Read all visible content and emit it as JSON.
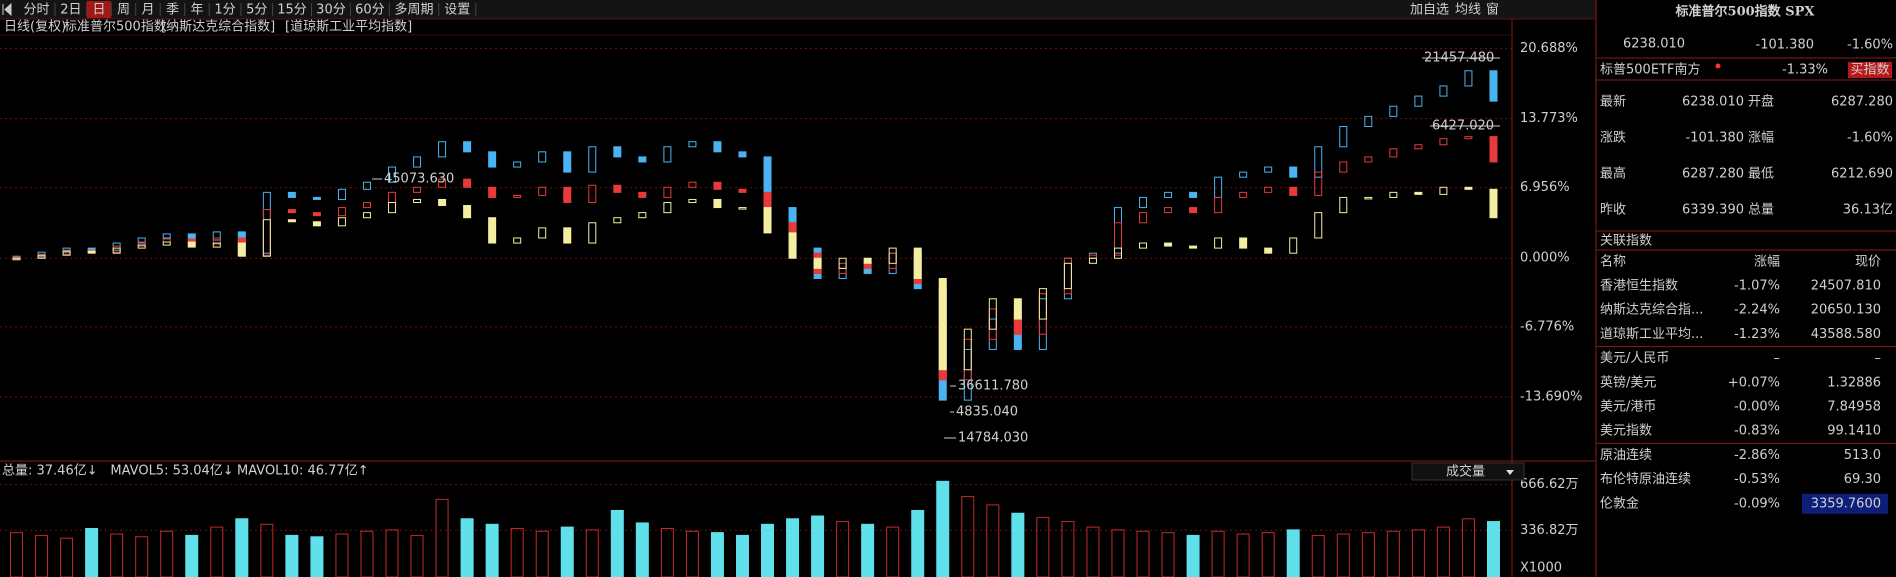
{
  "toolbar": {
    "periods": [
      "分时",
      "2日",
      "日",
      "周",
      "月",
      "季",
      "年",
      "1分",
      "5分",
      "15分",
      "30分",
      "60分",
      "多周期",
      "设置"
    ],
    "right": [
      "加自选",
      "均线",
      "窗"
    ]
  },
  "chart_header": {
    "mode": "日线(复权)"
  },
  "chart_data": [
    {
      "type": "candlestick",
      "series": [
        {
          "name": "[纳斯达克综合指数]",
          "color": "#4ab4f2",
          "values": [
            0.2,
            0.6,
            1.0,
            0.8,
            1.5,
            2.0,
            2.4,
            1.8,
            2.6,
            0.5,
            6.5,
            6.0,
            5.8,
            6.8,
            7.5,
            9.0,
            10.0,
            11.5,
            10.5,
            9.0,
            9.5,
            10.5,
            8.5,
            11.0,
            10.0,
            9.5,
            11.0,
            11.5,
            10.5,
            10.0,
            5.0,
            1.0,
            -2.0,
            -1.0,
            -1.5,
            0.5,
            -3.0,
            -14.0,
            -9.0,
            -6.0,
            -9.0,
            -4.0,
            0.0,
            0.5,
            5.0,
            6.0,
            6.5,
            6.0,
            8.0,
            8.5,
            9.0,
            8.0,
            11.0,
            13.0,
            14.0,
            15.0,
            16.0,
            17.0,
            18.5,
            15.5
          ]
        },
        {
          "name": "标准普尔500指数",
          "color": "#e83a3a",
          "values": [
            0.1,
            0.4,
            0.8,
            0.6,
            1.2,
            1.6,
            1.9,
            1.4,
            2.0,
            0.3,
            4.8,
            4.5,
            4.2,
            5.0,
            5.5,
            6.5,
            7.0,
            7.8,
            7.0,
            6.0,
            6.2,
            7.0,
            5.5,
            7.2,
            6.5,
            6.0,
            7.0,
            7.5,
            6.8,
            6.5,
            3.5,
            0.5,
            -1.5,
            -0.5,
            -1.0,
            0.5,
            -2.5,
            -12.0,
            -8.0,
            -5.0,
            -7.5,
            -3.5,
            0.0,
            0.3,
            3.5,
            4.5,
            5.0,
            4.5,
            6.0,
            6.5,
            7.0,
            6.2,
            8.5,
            9.5,
            10.0,
            10.8,
            11.2,
            11.8,
            12.0,
            9.5
          ]
        },
        {
          "name": "[道琼斯工业平均指数]",
          "color": "#f4eea0",
          "values": [
            0.0,
            0.3,
            0.7,
            0.5,
            1.0,
            1.3,
            1.6,
            1.1,
            1.5,
            0.2,
            3.8,
            3.6,
            3.2,
            4.0,
            4.5,
            5.5,
            5.8,
            5.2,
            4.0,
            1.5,
            2.0,
            3.0,
            1.5,
            3.5,
            4.0,
            4.5,
            5.5,
            5.8,
            5.0,
            5.0,
            2.5,
            0.0,
            -1.0,
            0.0,
            -0.5,
            1.0,
            -2.0,
            -11.0,
            -7.0,
            -4.0,
            -6.0,
            -3.0,
            -0.5,
            0.0,
            1.0,
            1.5,
            1.2,
            1.0,
            2.0,
            1.0,
            0.5,
            2.0,
            4.5,
            6.0,
            6.0,
            6.5,
            6.3,
            7.0,
            6.8,
            4.0
          ]
        }
      ],
      "ylim": [
        -19.81,
        21.93
      ],
      "yticks": [
        {
          "value": 20.688,
          "label": "20.688%"
        },
        {
          "value": 13.773,
          "label": "13.773%"
        },
        {
          "value": 6.956,
          "label": "6.956%"
        },
        {
          "value": 0,
          "label": "0.000%"
        },
        {
          "value": -6.776,
          "label": "-6.776%"
        },
        {
          "value": -13.69,
          "label": "-13.690%"
        }
      ],
      "grid": true,
      "annotations": [
        "21457.480",
        "6427.020",
        "45073.630",
        "36611.780",
        "4835.040",
        "14784.030"
      ]
    },
    {
      "type": "bar",
      "legend": [
        "总量: 37.46亿↓",
        "MAVOL5: 53.04亿↓",
        "MAVOL10: 46.77亿↑"
      ],
      "selector": "成交量",
      "unit": "X1000",
      "up_color": "#c42a2a",
      "down_color": "#5fe0ea",
      "values": [
        320,
        300,
        280,
        350,
        310,
        290,
        330,
        300,
        360,
        420,
        380,
        300,
        290,
        310,
        330,
        340,
        300,
        560,
        420,
        380,
        350,
        330,
        360,
        340,
        480,
        390,
        350,
        330,
        320,
        300,
        380,
        420,
        440,
        400,
        380,
        360,
        480,
        690,
        580,
        520,
        460,
        430,
        400,
        360,
        340,
        330,
        320,
        300,
        330,
        310,
        320,
        340,
        300,
        310,
        320,
        330,
        340,
        360,
        420,
        400
      ],
      "ylim": [
        0,
        743
      ],
      "yticks": [
        {
          "value": 666.62,
          "label": "666.62万"
        },
        {
          "value": 336.82,
          "label": "336.82万"
        }
      ]
    }
  ],
  "quote": {
    "title": "标准普尔500指数 SPX",
    "price": "6238.010",
    "change": "-101.380",
    "change_pct": "-1.60%",
    "etf_name": "标普500ETF南方",
    "etf_pct": "-1.33%",
    "buy_button": "买指数",
    "fields": [
      [
        "最新",
        "6238.010",
        "开盘",
        "6287.280"
      ],
      [
        "涨跌",
        "-101.380",
        "涨幅",
        "-1.60%"
      ],
      [
        "最高",
        "6287.280",
        "最低",
        "6212.690"
      ],
      [
        "昨收",
        "6339.390",
        "总量",
        "36.13亿"
      ]
    ]
  },
  "related": {
    "title": "关联指数",
    "header": [
      "名称",
      "涨幅",
      "现价"
    ],
    "rows": [
      [
        "香港恒生指数",
        "-1.07%",
        "24507.810"
      ],
      [
        "纳斯达克综合指...",
        "-2.24%",
        "20650.130"
      ],
      [
        "道琼斯工业平均...",
        "-1.23%",
        "43588.580"
      ],
      [
        "美元/人民币",
        "–",
        "–"
      ],
      [
        "英镑/美元",
        "+0.07%",
        "1.32886"
      ],
      [
        "美元/港币",
        "-0.00%",
        "7.84958"
      ],
      [
        "美元指数",
        "-0.83%",
        "99.1410"
      ],
      [
        "原油连续",
        "-2.86%",
        "513.0"
      ],
      [
        "布伦特原油连续",
        "-0.53%",
        "69.30"
      ],
      [
        "伦敦金",
        "-0.09%",
        "3359.7600"
      ]
    ]
  }
}
